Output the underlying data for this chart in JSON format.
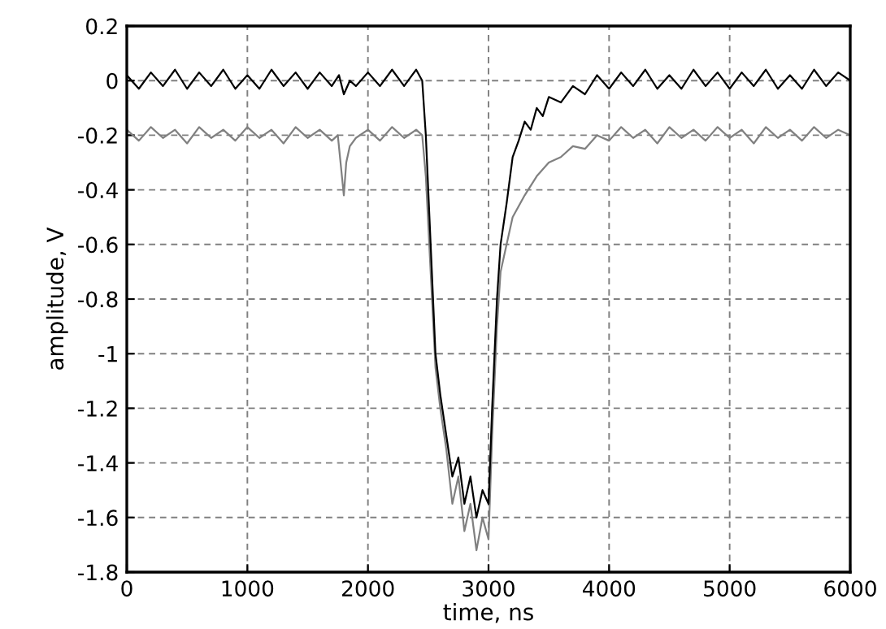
{
  "chart_data": {
    "type": "line",
    "xlabel": "time, ns",
    "ylabel": "amplitude, V",
    "xlim": [
      0,
      6000
    ],
    "ylim": [
      -1.8,
      0.2
    ],
    "xticks": [
      0,
      1000,
      2000,
      3000,
      4000,
      5000,
      6000
    ],
    "yticks": [
      0.2,
      0,
      -0.2,
      -0.4,
      -0.6,
      -0.8,
      -1,
      -1.2,
      -1.4,
      -1.6,
      -1.8
    ],
    "grid": true,
    "line_style": "solid",
    "marker": "none",
    "series": [
      {
        "color": "#808080",
        "x": [
          0,
          100,
          200,
          300,
          400,
          500,
          600,
          700,
          800,
          900,
          1000,
          1100,
          1200,
          1300,
          1400,
          1500,
          1600,
          1700,
          1750,
          1800,
          1820,
          1850,
          1900,
          2000,
          2100,
          2200,
          2300,
          2400,
          2450,
          2480,
          2520,
          2560,
          2600,
          2650,
          2700,
          2750,
          2800,
          2850,
          2900,
          2950,
          3000,
          3030,
          3070,
          3100,
          3150,
          3200,
          3300,
          3400,
          3500,
          3600,
          3700,
          3800,
          3900,
          4000,
          4100,
          4200,
          4300,
          4400,
          4500,
          4600,
          4700,
          4800,
          4900,
          5000,
          5100,
          5200,
          5300,
          5400,
          5500,
          5600,
          5700,
          5800,
          5900,
          6000
        ],
        "values": [
          -0.18,
          -0.22,
          -0.17,
          -0.21,
          -0.18,
          -0.23,
          -0.17,
          -0.21,
          -0.18,
          -0.22,
          -0.17,
          -0.21,
          -0.18,
          -0.23,
          -0.17,
          -0.21,
          -0.18,
          -0.22,
          -0.2,
          -0.42,
          -0.3,
          -0.24,
          -0.21,
          -0.18,
          -0.22,
          -0.17,
          -0.21,
          -0.18,
          -0.2,
          -0.35,
          -0.7,
          -1.05,
          -1.2,
          -1.35,
          -1.55,
          -1.45,
          -1.65,
          -1.55,
          -1.72,
          -1.6,
          -1.68,
          -1.3,
          -0.9,
          -0.7,
          -0.6,
          -0.5,
          -0.42,
          -0.35,
          -0.3,
          -0.28,
          -0.24,
          -0.25,
          -0.2,
          -0.22,
          -0.17,
          -0.21,
          -0.18,
          -0.23,
          -0.17,
          -0.21,
          -0.18,
          -0.22,
          -0.17,
          -0.21,
          -0.18,
          -0.23,
          -0.17,
          -0.21,
          -0.18,
          -0.22,
          -0.17,
          -0.21,
          -0.18,
          -0.2
        ]
      },
      {
        "color": "#000000",
        "x": [
          0,
          100,
          200,
          300,
          400,
          500,
          600,
          700,
          800,
          900,
          1000,
          1100,
          1200,
          1300,
          1400,
          1500,
          1600,
          1700,
          1760,
          1800,
          1850,
          1900,
          2000,
          2100,
          2200,
          2300,
          2400,
          2450,
          2480,
          2520,
          2560,
          2600,
          2650,
          2700,
          2750,
          2800,
          2850,
          2900,
          2950,
          3000,
          3030,
          3070,
          3100,
          3150,
          3200,
          3250,
          3300,
          3350,
          3400,
          3450,
          3500,
          3600,
          3700,
          3800,
          3900,
          4000,
          4100,
          4200,
          4300,
          4400,
          4500,
          4600,
          4700,
          4800,
          4900,
          5000,
          5100,
          5200,
          5300,
          5400,
          5500,
          5600,
          5700,
          5800,
          5900,
          6000
        ],
        "values": [
          0.02,
          -0.03,
          0.03,
          -0.02,
          0.04,
          -0.03,
          0.03,
          -0.02,
          0.04,
          -0.03,
          0.02,
          -0.03,
          0.04,
          -0.02,
          0.03,
          -0.03,
          0.03,
          -0.02,
          0.02,
          -0.05,
          0.0,
          -0.02,
          0.03,
          -0.02,
          0.04,
          -0.02,
          0.04,
          0.0,
          -0.2,
          -0.6,
          -1.0,
          -1.15,
          -1.3,
          -1.45,
          -1.38,
          -1.55,
          -1.45,
          -1.6,
          -1.5,
          -1.55,
          -1.2,
          -0.8,
          -0.6,
          -0.45,
          -0.28,
          -0.22,
          -0.15,
          -0.18,
          -0.1,
          -0.13,
          -0.06,
          -0.08,
          -0.02,
          -0.05,
          0.02,
          -0.03,
          0.03,
          -0.02,
          0.04,
          -0.03,
          0.02,
          -0.03,
          0.04,
          -0.02,
          0.03,
          -0.03,
          0.03,
          -0.02,
          0.04,
          -0.03,
          0.02,
          -0.03,
          0.04,
          -0.02,
          0.03,
          0.0
        ]
      }
    ]
  }
}
